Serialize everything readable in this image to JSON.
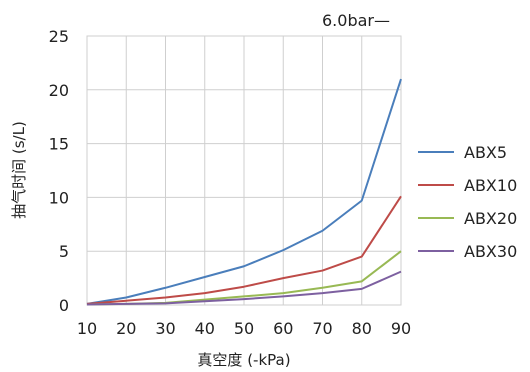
{
  "chart_data": {
    "type": "line",
    "title": "",
    "annotation": "6.0bar—",
    "xlabel": "真空度 (-kPa)",
    "ylabel": "抽气时间 (s/L)",
    "x": [
      10,
      20,
      30,
      40,
      50,
      60,
      70,
      80,
      90
    ],
    "xlim": [
      10,
      90
    ],
    "ylim": [
      0,
      25
    ],
    "x_ticks": [
      10,
      20,
      30,
      40,
      50,
      60,
      70,
      80,
      90
    ],
    "y_ticks": [
      0,
      5,
      10,
      15,
      20,
      25
    ],
    "grid": true,
    "legend_position": "right",
    "series": [
      {
        "name": "ABX5",
        "color": "#4a7ebb",
        "values": [
          0.1,
          0.7,
          1.6,
          2.6,
          3.6,
          5.1,
          6.9,
          9.7,
          21.0
        ]
      },
      {
        "name": "ABX10",
        "color": "#be4b48",
        "values": [
          0.1,
          0.4,
          0.7,
          1.1,
          1.7,
          2.5,
          3.2,
          4.5,
          10.1
        ]
      },
      {
        "name": "ABX20",
        "color": "#98b954",
        "values": [
          0.05,
          0.1,
          0.2,
          0.5,
          0.8,
          1.1,
          1.6,
          2.2,
          5.0
        ]
      },
      {
        "name": "ABX30",
        "color": "#7d60a0",
        "values": [
          0.05,
          0.1,
          0.15,
          0.35,
          0.55,
          0.8,
          1.1,
          1.5,
          3.1
        ]
      }
    ]
  }
}
